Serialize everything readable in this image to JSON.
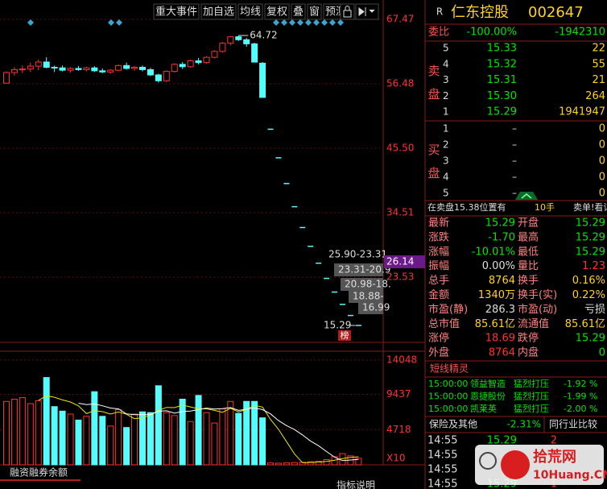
{
  "toolbar": {
    "buttons": [
      "重大事件",
      "加自选",
      "均线",
      "复权",
      "叠",
      "窗",
      "预测"
    ]
  },
  "stock": {
    "badge": "R",
    "name": "仁东控股",
    "code": "002647"
  },
  "chart_data": [
    {
      "type": "candlestick",
      "open": [
        56.6,
        58.4,
        58.9,
        59.0,
        59.5,
        60.2,
        59.3,
        59.2,
        58.8,
        59.1,
        58.9,
        59.2,
        58.7,
        58.5,
        58.8,
        59.6,
        59.1,
        59.3,
        58.9,
        58.0,
        57.0,
        58.6,
        59.8,
        59.4,
        60.4,
        60.1,
        61.0,
        62.0,
        63.4,
        64.5,
        64.0,
        63.3,
        60.0,
        48.74,
        43.87,
        39.48,
        35.53,
        31.98,
        28.78,
        25.9,
        23.31,
        20.98,
        18.88,
        16.99,
        15.29
      ],
      "high": [
        58.6,
        59.3,
        59.6,
        60.1,
        60.6,
        61.0,
        59.6,
        59.6,
        59.3,
        59.5,
        59.4,
        59.5,
        59.1,
        59.0,
        59.8,
        60.1,
        59.5,
        59.6,
        59.2,
        58.2,
        58.8,
        60.0,
        60.2,
        60.6,
        60.9,
        61.2,
        62.2,
        63.6,
        64.6,
        64.72,
        64.3,
        63.5,
        60.2,
        48.74,
        43.87,
        39.48,
        35.53,
        31.98,
        28.78,
        25.9,
        23.31,
        20.98,
        18.88,
        16.99,
        15.29
      ],
      "low": [
        56.5,
        57.9,
        58.3,
        58.5,
        58.8,
        59.1,
        58.5,
        58.6,
        58.4,
        58.7,
        58.6,
        58.5,
        58.3,
        58.2,
        58.6,
        58.9,
        58.7,
        58.6,
        57.8,
        56.7,
        56.8,
        58.4,
        59.0,
        59.2,
        59.8,
        59.9,
        60.8,
        61.8,
        63.0,
        63.8,
        62.8,
        60.18,
        54.16,
        48.74,
        43.87,
        39.48,
        35.53,
        31.98,
        28.78,
        25.9,
        23.31,
        20.98,
        18.88,
        16.99,
        15.29
      ],
      "close": [
        58.4,
        58.9,
        59.0,
        59.5,
        60.2,
        59.3,
        59.2,
        58.8,
        59.1,
        58.9,
        59.2,
        58.7,
        58.5,
        58.8,
        59.6,
        59.1,
        59.3,
        58.9,
        58.0,
        57.0,
        58.6,
        59.8,
        59.4,
        60.4,
        60.1,
        61.0,
        62.0,
        63.4,
        64.5,
        64.0,
        63.3,
        60.18,
        54.16,
        48.74,
        43.87,
        39.48,
        35.53,
        31.98,
        28.78,
        25.9,
        23.31,
        20.98,
        18.88,
        16.99,
        15.29
      ],
      "up_color": "#ff3232",
      "down_color": "#54fcfc",
      "ylim": [
        12.54,
        70.22
      ],
      "yticks": [
        67.47,
        56.48,
        {
          "value": 45.5,
          "label": "45.50"
        },
        34.51,
        23.53
      ],
      "grid": true,
      "cursor_price": 26.14,
      "high_marker": 64.72,
      "low_marker": 15.29,
      "limit_labels": [
        "25.90-23.31",
        "23.31-20.9",
        "20.98-18.",
        "18.88-",
        "16.99"
      ],
      "badge": "榜"
    },
    {
      "type": "bar",
      "values": [
        8500,
        8800,
        9000,
        8200,
        8600,
        11700,
        7800,
        7200,
        6800,
        6000,
        6500,
        9800,
        6500,
        5200,
        7400,
        5000,
        6800,
        7100,
        7000,
        10600,
        7000,
        6600,
        8800,
        5800,
        9300,
        7000,
        5600,
        7500,
        8500,
        6900,
        8500,
        8500,
        6300,
        250,
        220,
        260,
        300,
        350,
        420,
        480,
        700,
        1100,
        1500,
        1200,
        876
      ],
      "lines": [
        {
          "color": "#e8e800",
          "values": [
            null,
            null,
            null,
            null,
            8620,
            9260,
            9060,
            8700,
            8420,
            7900,
            6860,
            7260,
            7120,
            6800,
            7080,
            6780,
            6180,
            6300,
            6660,
            7300,
            7700,
            7660,
            8000,
            7760,
            7500,
            7500,
            7300,
            7040,
            7580,
            7100,
            7400,
            7980,
            7740,
            6090,
            4754,
            3106,
            1466,
            276,
            310,
            362,
            450,
            610,
            840,
            996,
            1075
          ]
        },
        {
          "color": "#ffffff",
          "values": [
            null,
            null,
            null,
            null,
            null,
            null,
            null,
            null,
            null,
            8260,
            8060,
            8160,
            7910,
            7610,
            7490,
            6820,
            6720,
            6710,
            6730,
            7190,
            7240,
            6920,
            7150,
            7210,
            7400,
            7600,
            7480,
            7520,
            7670,
            7300,
            7450,
            7640,
            7390,
            6835,
            5927,
            5253,
            4723,
            4008,
            3200,
            2558,
            1778,
            1038,
            558,
            653,
            718
          ]
        }
      ],
      "ylim": [
        0,
        15760
      ],
      "yticks": [
        4718,
        9437,
        14048
      ],
      "grid": true,
      "unit_label": "X10"
    }
  ],
  "order_book": {
    "ratio_label": "委比",
    "ratio": "-100.00%",
    "diff": "-1942310",
    "sell_label": "卖盘",
    "buy_label": "买盘",
    "sell": [
      [
        "5",
        "15.33",
        "22"
      ],
      [
        "4",
        "15.32",
        "55"
      ],
      [
        "3",
        "15.31",
        "21"
      ],
      [
        "2",
        "15.30",
        "264"
      ],
      [
        "1",
        "15.29",
        "1941947"
      ]
    ],
    "buy": [
      [
        "1",
        "–",
        "0"
      ],
      [
        "2",
        "–",
        "0"
      ],
      [
        "3",
        "–",
        "0"
      ],
      [
        "4",
        "–",
        "0"
      ],
      [
        "5",
        "–",
        "0"
      ]
    ],
    "notice": {
      "text": "在卖盘15.38位置有",
      "lots": "10手",
      "link": "卖单!看详细"
    }
  },
  "quote": [
    [
      "最新",
      "15.29",
      "开盘",
      "15.29"
    ],
    [
      "涨跌",
      "-1.70",
      "最高",
      "15.29"
    ],
    [
      "涨幅",
      "-10.01%",
      "最低",
      "15.29"
    ],
    [
      "振幅",
      "0.00%",
      "量比",
      "1.23"
    ],
    [
      "总手",
      "8764",
      "换手",
      "0.16%"
    ],
    [
      "金额",
      "1340万",
      "换手(实)",
      "0.22%"
    ],
    [
      "市盈(静)",
      "286.3",
      "市盈(动)",
      "亏损"
    ],
    [
      "总市值",
      "85.61亿",
      "流通值",
      "85.61亿"
    ],
    [
      "涨停",
      "18.69",
      "跌停",
      "15.29"
    ],
    [
      "外盘",
      "8764",
      "内盘",
      "0"
    ]
  ],
  "short_news": {
    "title": "短线精灵",
    "rows": [
      [
        "15:00:00",
        "领益智造",
        "猛烈打压",
        "-1.92 %"
      ],
      [
        "15:00:00",
        "恩捷股份",
        "猛烈打压",
        "-1.99 %"
      ],
      [
        "15:00:00",
        "凯莱英",
        "猛烈打压",
        "-2.00 %"
      ]
    ]
  },
  "industry": {
    "name": "保险及其他",
    "change": "-2.31%",
    "compare": "同行业比较"
  },
  "ticks": [
    {
      "time": "14:55",
      "price": "15.29",
      "volume": "2"
    },
    {
      "time": "14:55"
    },
    {
      "time": "14:55"
    },
    {
      "time": "14:55",
      "price": "15.29",
      "volume": "1"
    }
  ],
  "footer": {
    "margin": "融资融券余额",
    "indicator": "指标说明"
  },
  "watermark": {
    "site": "10Huang.CN",
    "name": "拾荒网"
  }
}
